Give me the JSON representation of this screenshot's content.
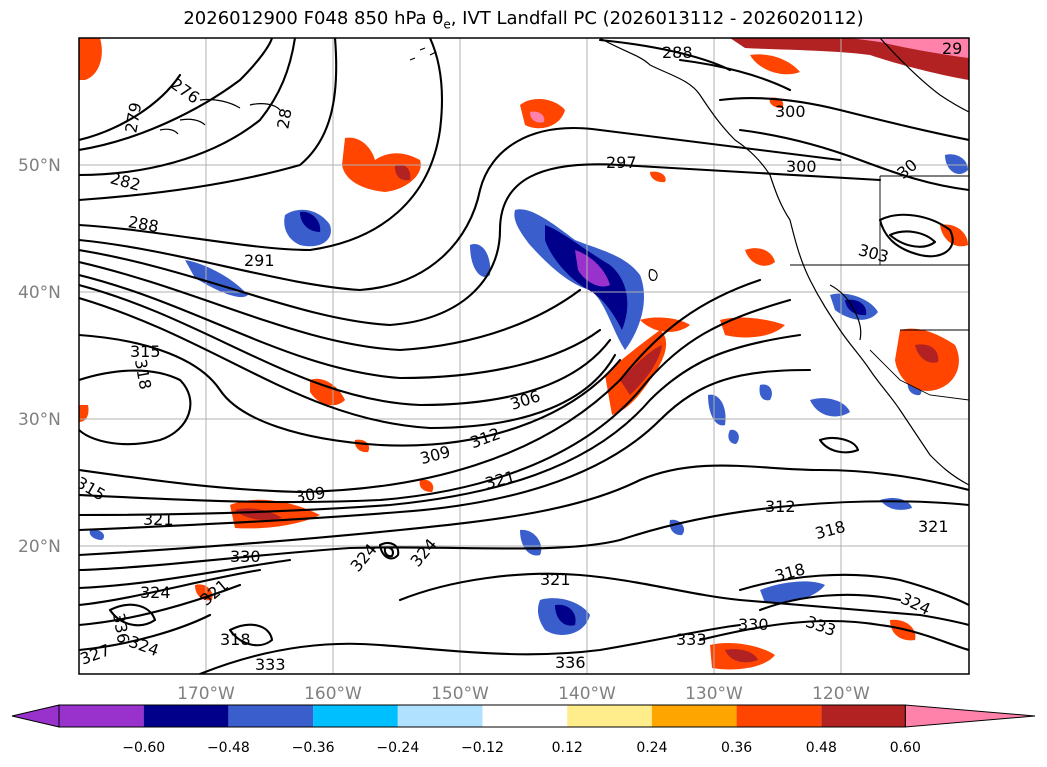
{
  "title": {
    "main": "2026012900 F048 850 hPa ",
    "theta": "θ",
    "theta_sub": "e",
    "rest": ", IVT Landfall PC (2026013112 - 2026020112)"
  },
  "map": {
    "lat_labels": [
      "50°N",
      "40°N",
      "30°N",
      "20°N"
    ],
    "lon_labels": [
      "170°W",
      "160°W",
      "150°W",
      "140°W",
      "130°W",
      "120°W"
    ],
    "contour_labels": [
      "279",
      "276",
      "282",
      "288",
      "291",
      "28",
      "297",
      "300",
      "300",
      "30",
      "303",
      "315",
      "318",
      "306",
      "309",
      "312",
      "321",
      "309",
      "315",
      "321",
      "330",
      "324",
      "324",
      "321",
      "318",
      "312",
      "318",
      "321",
      "324",
      "336",
      "318",
      "321",
      "324",
      "327",
      "333",
      "330",
      "333",
      "324",
      "336",
      "333",
      "288",
      "29"
    ]
  },
  "colorbar": {
    "ticks": [
      "−0.60",
      "−0.48",
      "−0.36",
      "−0.24",
      "−0.12",
      "0.12",
      "0.24",
      "0.36",
      "0.48",
      "0.60"
    ],
    "colors": [
      "#9932cc",
      "#00008b",
      "#3a5fcd",
      "#00bfff",
      "#b0e2ff",
      "#ffffff",
      "#ffec8b",
      "#ffa500",
      "#ff4500",
      "#b22222",
      "#ff82ab"
    ]
  },
  "chart_data": {
    "type": "heatmap",
    "title": "2026012900 F048 850 hPa θe, IVT Landfall PC (2026013112 - 2026020112)",
    "lon_ticks": [
      "170°W",
      "160°W",
      "150°W",
      "140°W",
      "130°W",
      "120°W"
    ],
    "lat_ticks": [
      "50°N",
      "40°N",
      "30°N",
      "20°N"
    ],
    "colorbar_levels": [
      -0.6,
      -0.48,
      -0.36,
      -0.24,
      -0.12,
      0.12,
      0.24,
      0.36,
      0.48,
      0.6
    ],
    "colorbar_extend": "both",
    "contour_variable_levels_shown": [
      276,
      279,
      282,
      288,
      291,
      297,
      300,
      303,
      306,
      309,
      312,
      315,
      318,
      321,
      324,
      327,
      330,
      333,
      336
    ]
  }
}
